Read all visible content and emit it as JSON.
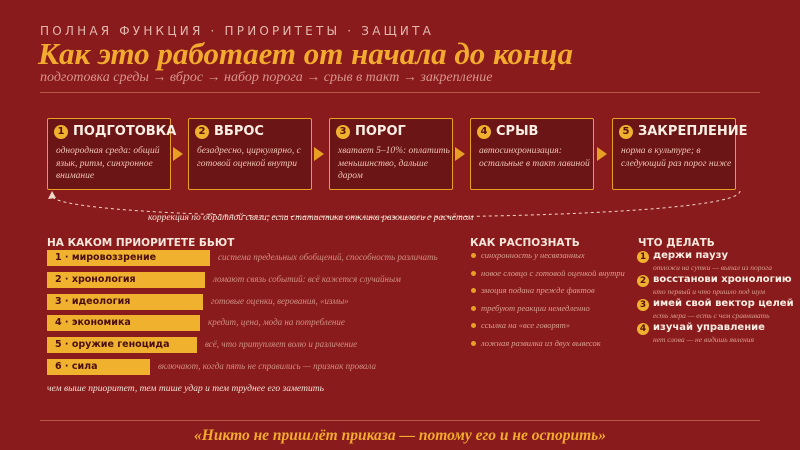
{
  "header": {
    "kicker": "ПОЛНАЯ ФУНКЦИЯ · ПРИОРИТЕТЫ · ЗАЩИТА",
    "title": "Как это работает от начала до конца",
    "subtitle": "подготовка среды → вброс → набор порога → срыв в такт → закрепление"
  },
  "steps": [
    {
      "num": "1",
      "label": "ПОДГОТОВКА",
      "desc": "однородная среда: общий язык, ритм, синхронное внимание"
    },
    {
      "num": "2",
      "label": "ВБРОС",
      "desc": "безадресно, циркулярно, с готовой оценкой внутри"
    },
    {
      "num": "3",
      "label": "ПОРОГ",
      "desc": "хватает 5–10%: оплатить меньшинство, дальше даром"
    },
    {
      "num": "4",
      "label": "СРЫВ",
      "desc": "автосинхронизация: остальные в такт лавиной"
    },
    {
      "num": "5",
      "label": "ЗАКРЕПЛЕНИЕ",
      "desc": "норма в культуре; в следующий раз порог ниже"
    }
  ],
  "feedback": "коррекция по обратной связи, если статистика отклика разошлась с расчётом",
  "priorities": {
    "heading": "НА КАКОМ ПРИОРИТЕТЕ БЬЮТ",
    "rows": [
      {
        "label": "1 · мировоззрение",
        "desc": "система предельных обобщений, способность различать"
      },
      {
        "label": "2 · хронология",
        "desc": "ломают связь событий: всё кажется случайным"
      },
      {
        "label": "3 · идеология",
        "desc": "готовые оценки, верования, «измы»"
      },
      {
        "label": "4 · экономика",
        "desc": "кредит, цена, мода на потребление"
      },
      {
        "label": "5 · оружие геноцида",
        "desc": "всё, что притупляет волю и различение"
      },
      {
        "label": "6 · сила",
        "desc": "включают, когда пять не справились — признак провала"
      }
    ],
    "footnote": "чем выше приоритет, тем тише удар и тем труднее его заметить"
  },
  "recognize": {
    "heading": "КАК РАСПОЗНАТЬ",
    "items": [
      "синхронность у несвязанных",
      "новое словцо с готовой оценкой внутри",
      "эмоция подана прежде фактов",
      "требуют реакции немедленно",
      "ссылка на «все говорят»",
      "ложная развилка из двух вывесок"
    ]
  },
  "actions": {
    "heading": "ЧТО ДЕЛАТЬ",
    "items": [
      {
        "num": "1",
        "title": "держи паузу",
        "sub": "отложи на сутки — выпал из порога"
      },
      {
        "num": "2",
        "title": "восстанови хронологию",
        "sub": "кто первый и что пришло под шум"
      },
      {
        "num": "3",
        "title": "имей свой вектор целей",
        "sub": "есть мера — есть с чем сравнивать"
      },
      {
        "num": "4",
        "title": "изучай управление",
        "sub": "нет слова — не видишь явления"
      }
    ]
  },
  "quote": "«Никто не пришлёт приказа — потому его и не оспорить»"
}
